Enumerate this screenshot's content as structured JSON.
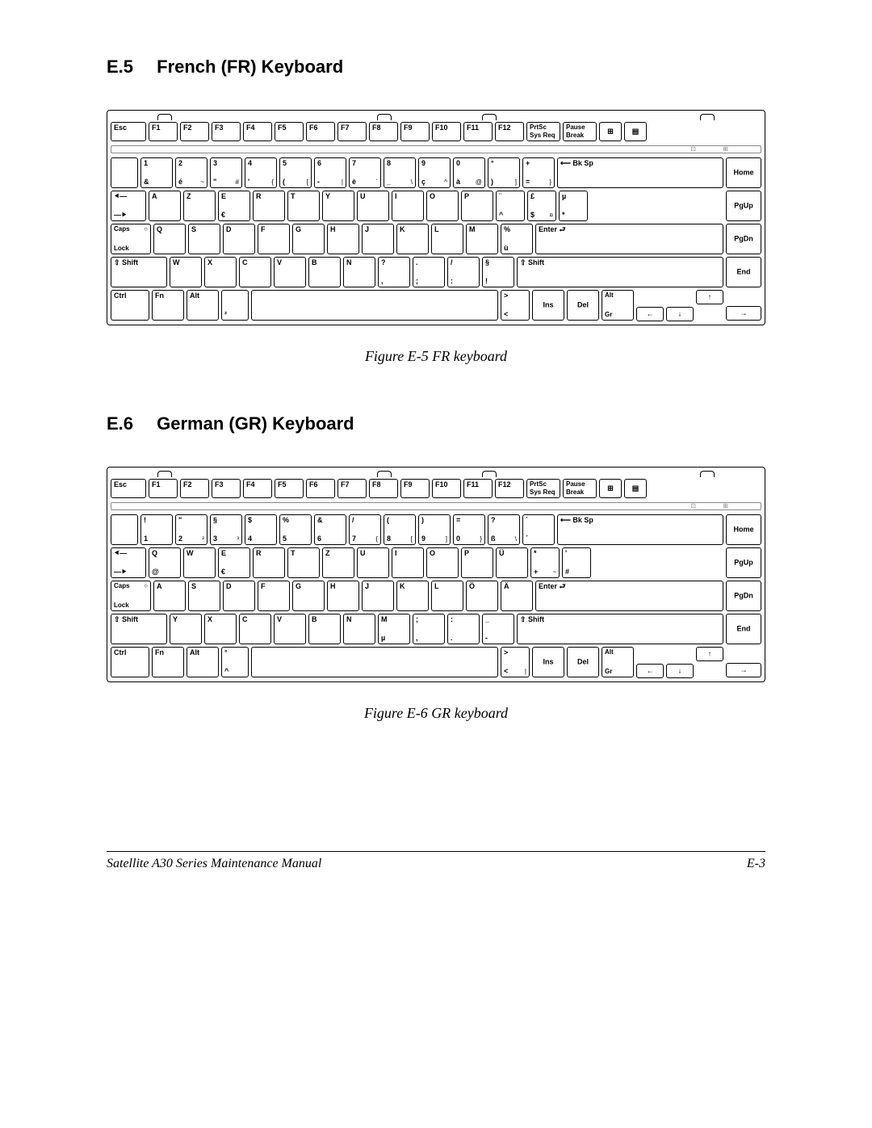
{
  "sections": {
    "fr": {
      "num": "E.5",
      "title": "French (FR) Keyboard",
      "caption": "Figure E-5  FR keyboard"
    },
    "gr": {
      "num": "E.6",
      "title": "German (GR) Keyboard",
      "caption": "Figure E-6  GR keyboard"
    }
  },
  "footer": {
    "left": "Satellite A30 Series Maintenance Manual",
    "right": "E-3"
  },
  "fn_labels": {
    "esc": "Esc",
    "f1": "F1",
    "f2": "F2",
    "f3": "F3",
    "f4": "F4",
    "f5": "F5",
    "f6": "F6",
    "f7": "F7",
    "f8": "F8",
    "f9": "F9",
    "f10": "F10",
    "f11": "F11",
    "f12": "F12",
    "prtsc1": "PrtSc",
    "prtsc2": "Sys Req",
    "pause1": "Pause",
    "pause2": "Break"
  },
  "side_keys": {
    "home": "Home",
    "pgup": "PgUp",
    "pgdn": "PgDn",
    "end": "End"
  },
  "common": {
    "bksp": "Bk Sp",
    "enter": "Enter",
    "shift": "Shift",
    "caps": "Caps\nLock",
    "ctrl": "Ctrl",
    "fn": "Fn",
    "alt": "Alt",
    "altgr": "Alt\nGr",
    "ins": "Ins",
    "del": "Del",
    "tab_left": "⯇—",
    "tab_right": "—⯈",
    "arrows": {
      "up": "↑",
      "down": "↓",
      "left": "←",
      "right": "→"
    }
  },
  "fr": {
    "row1": [
      {
        "tl": "1",
        "bl": "&"
      },
      {
        "tl": "2",
        "bl": "é",
        "br": "~"
      },
      {
        "tl": "3",
        "bl": "\"",
        "br": "#"
      },
      {
        "tl": "4",
        "bl": "'",
        "br": "{"
      },
      {
        "tl": "5",
        "bl": "(",
        "br": "["
      },
      {
        "tl": "6",
        "bl": "-",
        "br": "|"
      },
      {
        "tl": "7",
        "bl": "è",
        "br": "`"
      },
      {
        "tl": "8",
        "bl": "_",
        "br": "\\"
      },
      {
        "tl": "9",
        "bl": "ç",
        "br": "^"
      },
      {
        "tl": "0",
        "bl": "à",
        "br": "@"
      },
      {
        "tl": "°",
        "bl": ")",
        "br": "]"
      },
      {
        "tl": "+",
        "bl": "=",
        "br": "}"
      }
    ],
    "row2": [
      "A",
      "Z",
      "E",
      "R",
      "T",
      "Y",
      "U",
      "I",
      "O",
      "P"
    ],
    "row2_euro_idx": 2,
    "row2_tail": [
      {
        "tl": "¨",
        "bl": "^"
      },
      {
        "tl": "£",
        "bl": "$",
        "br": "¤"
      },
      {
        "tl": "µ",
        "bl": "*"
      }
    ],
    "row3": [
      "Q",
      "S",
      "D",
      "F",
      "G",
      "H",
      "J",
      "K",
      "L",
      "M"
    ],
    "row3_tail": [
      {
        "tl": "%",
        "bl": "ù"
      }
    ],
    "row4": [
      "W",
      "X",
      "C",
      "V",
      "B",
      "N"
    ],
    "row4_tail": [
      {
        "tl": "?",
        "bl": ","
      },
      {
        "tl": ".",
        "bl": ";"
      },
      {
        "tl": "/",
        "bl": ":"
      },
      {
        "tl": "§",
        "bl": "!"
      }
    ],
    "row5_extra": {
      "tl": "",
      "bl": "²"
    },
    "row5_gt": {
      "tl": ">",
      "bl": "<"
    }
  },
  "gr": {
    "row1": [
      {
        "tl": "!",
        "bl": "1"
      },
      {
        "tl": "\"",
        "bl": "2",
        "br": "²"
      },
      {
        "tl": "§",
        "bl": "3",
        "br": "³"
      },
      {
        "tl": "$",
        "bl": "4"
      },
      {
        "tl": "%",
        "bl": "5"
      },
      {
        "tl": "&",
        "bl": "6"
      },
      {
        "tl": "/",
        "bl": "7",
        "br": "{"
      },
      {
        "tl": "(",
        "bl": "8",
        "br": "["
      },
      {
        "tl": ")",
        "bl": "9",
        "br": "]"
      },
      {
        "tl": "=",
        "bl": "0",
        "br": "}"
      },
      {
        "tl": "?",
        "bl": "ß",
        "br": "\\"
      },
      {
        "tl": "`",
        "bl": "´"
      }
    ],
    "row2": [
      "Q",
      "W",
      "E",
      "R",
      "T",
      "Z",
      "U",
      "I",
      "O",
      "P",
      "Ü"
    ],
    "row2_euro_idx": 2,
    "row2_q_at": true,
    "row2_tail": [
      {
        "tl": "*",
        "bl": "+",
        "br": "~"
      },
      {
        "tl": "'",
        "bl": "#"
      }
    ],
    "row3": [
      "A",
      "S",
      "D",
      "F",
      "G",
      "H",
      "J",
      "K",
      "L",
      "Ö",
      "Ä"
    ],
    "row4": [
      "Y",
      "X",
      "C",
      "V",
      "B",
      "N"
    ],
    "row4_tail": [
      {
        "tl": "M",
        "bl": "µ"
      },
      {
        "tl": ";",
        "bl": ","
      },
      {
        "tl": ":",
        "bl": "."
      },
      {
        "tl": "_",
        "bl": "-"
      }
    ],
    "row5_extra": {
      "tl": "°",
      "bl": "^"
    },
    "row5_gt": {
      "tl": ">",
      "bl": "<",
      "br": "|"
    }
  }
}
